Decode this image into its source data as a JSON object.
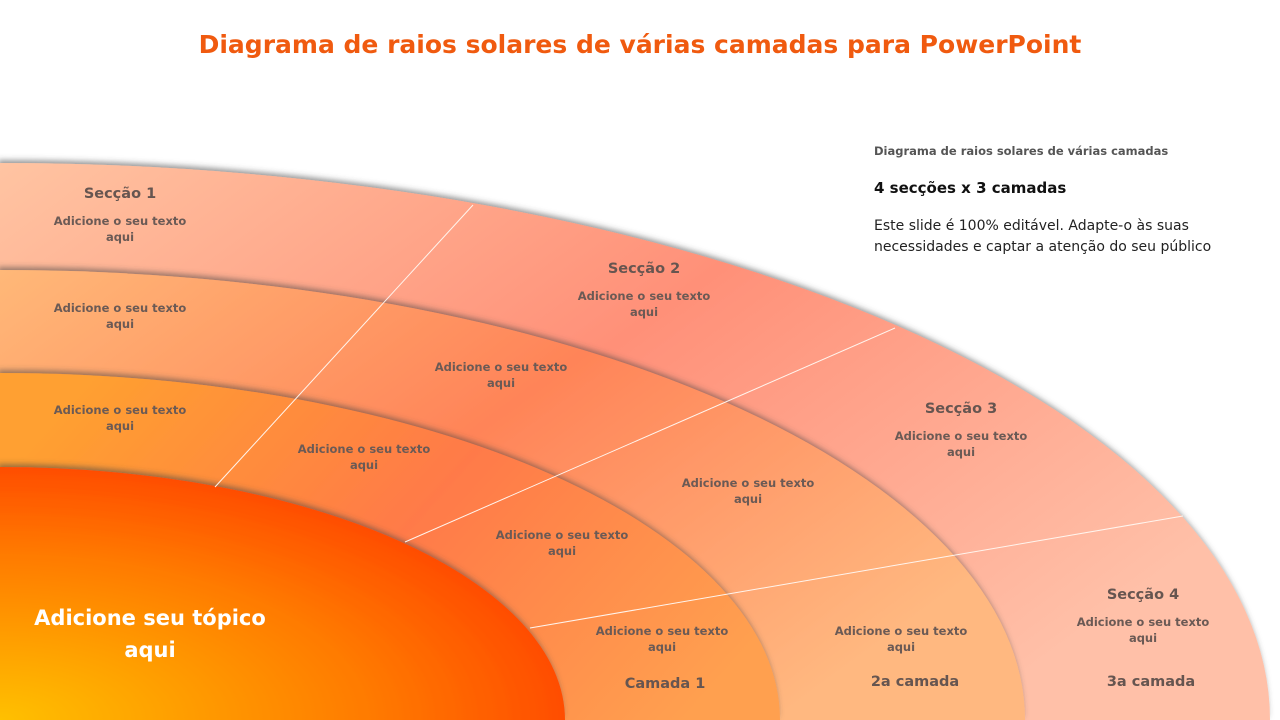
{
  "title": "Diagrama de raios solares de várias camadas para PowerPoint",
  "side_panel": {
    "subtitle": "Diagrama de raios solares de várias camadas",
    "heading": "4 secções x 3 camadas",
    "body": "Este slide é 100% editável. Adapte-o às suas necessidades e captar a atenção do seu público"
  },
  "core_label": "Adicione seu tópico aqui",
  "sections": [
    "Secção 1",
    "Secção 2",
    "Secção 3",
    "Secção 4"
  ],
  "layers": [
    "Camada 1",
    "2a camada",
    "3a camada"
  ],
  "placeholder_text": "Adicione o seu texto aqui",
  "colors": {
    "title": "#f05a0f",
    "core": "#ff4500",
    "layer1": "#ff8a45",
    "layer2": "#ffa060",
    "layer3": "#ff9a80"
  }
}
